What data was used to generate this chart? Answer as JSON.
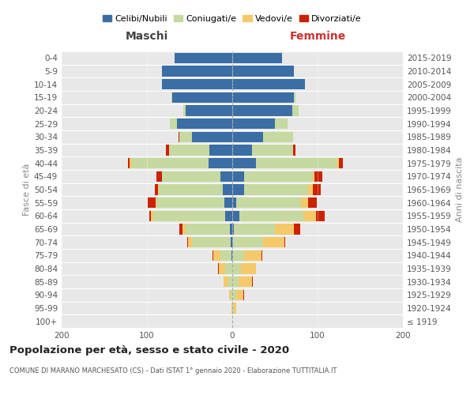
{
  "age_groups": [
    "100+",
    "95-99",
    "90-94",
    "85-89",
    "80-84",
    "75-79",
    "70-74",
    "65-69",
    "60-64",
    "55-59",
    "50-54",
    "45-49",
    "40-44",
    "35-39",
    "30-34",
    "25-29",
    "20-24",
    "15-19",
    "10-14",
    "5-9",
    "0-4"
  ],
  "birth_years": [
    "≤ 1919",
    "1920-1924",
    "1925-1929",
    "1930-1934",
    "1935-1939",
    "1940-1944",
    "1945-1949",
    "1950-1954",
    "1955-1959",
    "1960-1964",
    "1965-1969",
    "1970-1974",
    "1975-1979",
    "1980-1984",
    "1985-1989",
    "1990-1994",
    "1995-1999",
    "2000-2004",
    "2005-2009",
    "2010-2014",
    "2015-2019"
  ],
  "colors": {
    "celibi": "#3a6ea5",
    "coniugati": "#c5d9a0",
    "vedovi": "#f5c96a",
    "divorziati": "#cc2200"
  },
  "males": {
    "celibi": [
      0,
      0,
      0,
      0,
      0,
      1,
      2,
      3,
      8,
      9,
      11,
      14,
      28,
      27,
      47,
      65,
      55,
      70,
      82,
      82,
      68
    ],
    "coniugati": [
      0,
      0,
      2,
      5,
      8,
      13,
      45,
      52,
      85,
      80,
      75,
      68,
      90,
      47,
      15,
      8,
      2,
      1,
      0,
      0,
      0
    ],
    "vedovi": [
      0,
      1,
      2,
      5,
      8,
      8,
      5,
      3,
      2,
      1,
      1,
      0,
      2,
      0,
      0,
      0,
      0,
      0,
      0,
      0,
      0
    ],
    "divorziati": [
      0,
      0,
      0,
      0,
      1,
      1,
      1,
      4,
      2,
      9,
      4,
      7,
      2,
      4,
      1,
      0,
      0,
      0,
      0,
      0,
      0
    ]
  },
  "females": {
    "nubili": [
      0,
      0,
      0,
      0,
      0,
      0,
      1,
      2,
      8,
      5,
      14,
      14,
      28,
      23,
      36,
      50,
      70,
      72,
      85,
      72,
      58
    ],
    "coniugate": [
      0,
      2,
      5,
      7,
      10,
      14,
      35,
      48,
      75,
      76,
      75,
      80,
      95,
      48,
      35,
      15,
      8,
      2,
      0,
      0,
      0
    ],
    "vedove": [
      0,
      3,
      8,
      16,
      18,
      20,
      25,
      22,
      15,
      8,
      5,
      2,
      2,
      0,
      0,
      0,
      0,
      0,
      0,
      0,
      0
    ],
    "divorziate": [
      0,
      0,
      1,
      1,
      0,
      1,
      1,
      8,
      10,
      10,
      10,
      10,
      5,
      3,
      0,
      0,
      0,
      0,
      0,
      0,
      0
    ]
  },
  "title": "Popolazione per età, sesso e stato civile - 2020",
  "subtitle": "COMUNE DI MARANO MARCHESATO (CS) - Dati ISTAT 1° gennaio 2020 - Elaborazione TUTTITALIA.IT",
  "xlabel_left": "Maschi",
  "xlabel_right": "Femmine",
  "ylabel_left": "Fasce di età",
  "ylabel_right": "Anni di nascita",
  "xlim": 200,
  "legend_labels": [
    "Celibi/Nubili",
    "Coniugati/e",
    "Vedovi/e",
    "Divorziati/e"
  ]
}
